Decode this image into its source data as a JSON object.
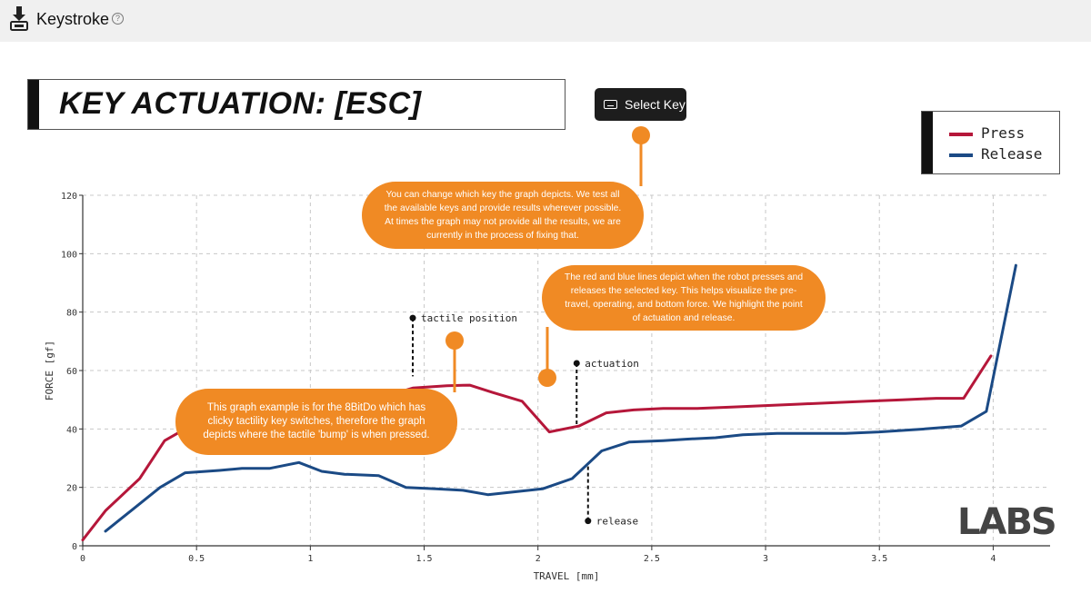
{
  "app": {
    "title": "Keystroke",
    "icon": "keycap-download-icon",
    "help": "?"
  },
  "header": {
    "title": "KEY ACTUATION: [ESC]"
  },
  "select_key": {
    "label": "Select Key",
    "icon": "keyboard-icon"
  },
  "callouts": {
    "select_key": "You can change which key the graph depicts. We test all the available keys and provide results wherever possible. At times the graph may not provide all the results, we are currently in the process of fixing that.",
    "lines": "The red and blue lines depict when the robot presses and releases the selected key. This helps visualize the pre-travel, operating, and bottom force. We highlight the point of actuation and release.",
    "tactile": "This graph example is for the 8BitDo which has clicky tactility key switches, therefore the graph depicts where the tactile 'bump' is when pressed."
  },
  "logo": "LABS",
  "colors": {
    "press": "#b5173a",
    "release": "#1b4a85",
    "callout": "#f08a24"
  },
  "chart_data": {
    "type": "line",
    "xlabel": "TRAVEL [mm]",
    "ylabel": "FORCE [gf]",
    "xlim": [
      0,
      4.25
    ],
    "ylim": [
      0,
      120
    ],
    "x_ticks": [
      "0",
      "0.5",
      "1",
      "1.5",
      "2",
      "2.5",
      "3",
      "3.5",
      "4"
    ],
    "y_ticks": [
      "0",
      "20",
      "40",
      "60",
      "80",
      "100",
      "120"
    ],
    "grid": true,
    "legend_position": "top-right",
    "series": [
      {
        "name": "Press",
        "color": "#b5173a",
        "x": [
          0,
          0.1,
          0.25,
          0.36,
          0.45,
          0.55,
          0.7,
          0.85,
          1.0,
          1.15,
          1.3,
          1.45,
          1.6,
          1.7,
          1.8,
          1.93,
          2.05,
          2.18,
          2.3,
          2.42,
          2.55,
          2.7,
          2.85,
          3.0,
          3.15,
          3.3,
          3.45,
          3.6,
          3.75,
          3.87,
          3.99
        ],
        "y": [
          2,
          12,
          23,
          36,
          40,
          41.5,
          43.5,
          45,
          47,
          48.5,
          50.5,
          54,
          54.8,
          55,
          52.5,
          49.5,
          39,
          41,
          45.5,
          46.5,
          47,
          47,
          47.5,
          48,
          48.5,
          49,
          49.5,
          50,
          50.5,
          50.5,
          65
        ]
      },
      {
        "name": "Release",
        "color": "#1b4a85",
        "x": [
          0.1,
          0.22,
          0.34,
          0.45,
          0.6,
          0.7,
          0.82,
          0.95,
          1.05,
          1.15,
          1.3,
          1.42,
          1.55,
          1.67,
          1.78,
          1.9,
          2.02,
          2.15,
          2.28,
          2.4,
          2.55,
          2.65,
          2.78,
          2.9,
          3.05,
          3.2,
          3.35,
          3.5,
          3.7,
          3.86,
          3.97,
          4.1
        ],
        "y": [
          5,
          12.5,
          20,
          25,
          25.8,
          26.5,
          26.5,
          28.5,
          25.5,
          24.5,
          24,
          20,
          19.5,
          19,
          17.5,
          18.5,
          19.5,
          23,
          32.5,
          35.5,
          36,
          36.5,
          37,
          38,
          38.5,
          38.5,
          38.5,
          39,
          40,
          41,
          46,
          96
        ]
      }
    ],
    "annotations": [
      {
        "label": "tactile position",
        "x": 1.45,
        "y": 78
      },
      {
        "label": "actuation",
        "x": 2.17,
        "y": 62.5
      },
      {
        "label": "release",
        "x": 2.22,
        "y": 8.5
      }
    ]
  }
}
